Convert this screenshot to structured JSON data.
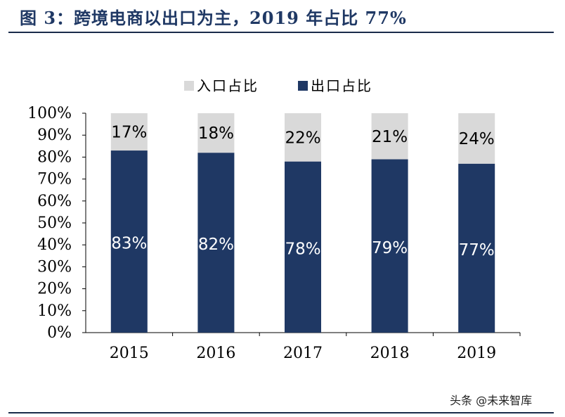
{
  "figure": {
    "title": "图 3：跨境电商以出口为主，2019 年占比 77%",
    "watermark": "头条 @未来智库"
  },
  "chart_data": {
    "type": "bar",
    "stacked": true,
    "categories": [
      "2015",
      "2016",
      "2017",
      "2018",
      "2019"
    ],
    "series": [
      {
        "name": "出口占比",
        "values": [
          83,
          82,
          78,
          79,
          77
        ],
        "labels": [
          "83%",
          "82%",
          "78%",
          "79%",
          "77%"
        ],
        "color": "#1f3864"
      },
      {
        "name": "入口占比",
        "values": [
          17,
          18,
          22,
          21,
          24
        ],
        "labels": [
          "17%",
          "18%",
          "22%",
          "21%",
          "24%"
        ],
        "color": "#d9d9d9"
      }
    ],
    "y_ticks": [
      "0%",
      "10%",
      "20%",
      "30%",
      "40%",
      "50%",
      "60%",
      "70%",
      "80%",
      "90%",
      "100%"
    ],
    "ylim": [
      0,
      100
    ],
    "grid": false,
    "legend_position": "top"
  }
}
